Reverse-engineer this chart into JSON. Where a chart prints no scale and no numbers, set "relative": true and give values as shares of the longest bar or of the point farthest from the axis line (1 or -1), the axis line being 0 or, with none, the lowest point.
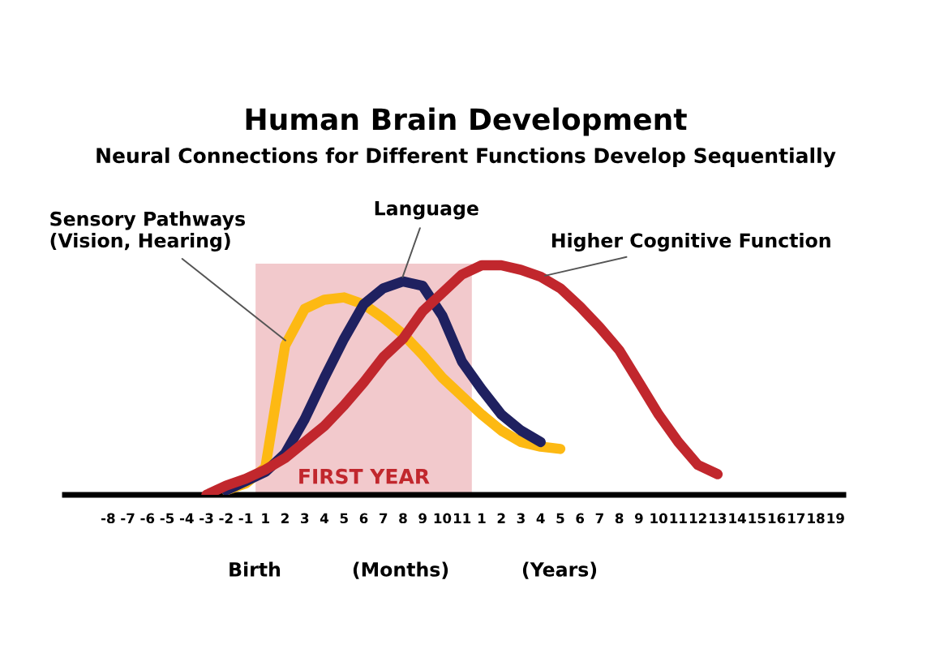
{
  "chart_data": {
    "type": "line",
    "title": "Human Brain Development",
    "subtitle": "Neural Connections for Different Functions Develop Sequentially",
    "relative": true,
    "legend": false,
    "grid": false,
    "line_style": "solid",
    "marker": "none",
    "categories": [
      "-8",
      "-7",
      "-6",
      "-5",
      "-4",
      "-3",
      "-2",
      "-1",
      "1",
      "2",
      "3",
      "4",
      "5",
      "6",
      "7",
      "8",
      "9",
      "10",
      "11",
      "1",
      "2",
      "3",
      "4",
      "5",
      "6",
      "7",
      "8",
      "9",
      "10",
      "11",
      "12",
      "13",
      "14",
      "15",
      "16",
      "17",
      "18",
      "19"
    ],
    "series": [
      {
        "name": "Sensory Pathways\n(Vision, Hearing)",
        "color": "#fdb913",
        "values": [
          null,
          null,
          null,
          null,
          null,
          null,
          0.02,
          0.05,
          0.12,
          0.65,
          0.81,
          0.85,
          0.86,
          0.83,
          0.77,
          0.7,
          0.61,
          0.51,
          0.43,
          0.35,
          0.28,
          0.23,
          0.21,
          0.2,
          null,
          null,
          null,
          null,
          null,
          null,
          null,
          null,
          null,
          null,
          null,
          null,
          null,
          null
        ]
      },
      {
        "name": "Language",
        "color": "#1f2160",
        "values": [
          null,
          null,
          null,
          null,
          null,
          null,
          0.02,
          0.06,
          0.1,
          0.18,
          0.33,
          0.51,
          0.68,
          0.83,
          0.9,
          0.93,
          0.91,
          0.78,
          0.58,
          0.46,
          0.35,
          0.28,
          0.23,
          null,
          null,
          null,
          null,
          null,
          null,
          null,
          null,
          null,
          null,
          null,
          null,
          null,
          null,
          null
        ]
      },
      {
        "name": "Higher Cognitive Function",
        "color": "#c1272d",
        "values": [
          null,
          null,
          null,
          null,
          null,
          0.0,
          0.04,
          0.07,
          0.11,
          0.16,
          0.23,
          0.3,
          0.39,
          0.49,
          0.6,
          0.68,
          0.8,
          0.88,
          0.96,
          1.0,
          1.0,
          0.98,
          0.95,
          0.9,
          0.82,
          0.73,
          0.63,
          0.49,
          0.35,
          0.23,
          0.13,
          0.09,
          null,
          null,
          null,
          null,
          null,
          null
        ]
      }
    ],
    "annotations": [
      "FIRST YEAR",
      "Birth",
      "(Months)",
      "(Years)"
    ]
  }
}
